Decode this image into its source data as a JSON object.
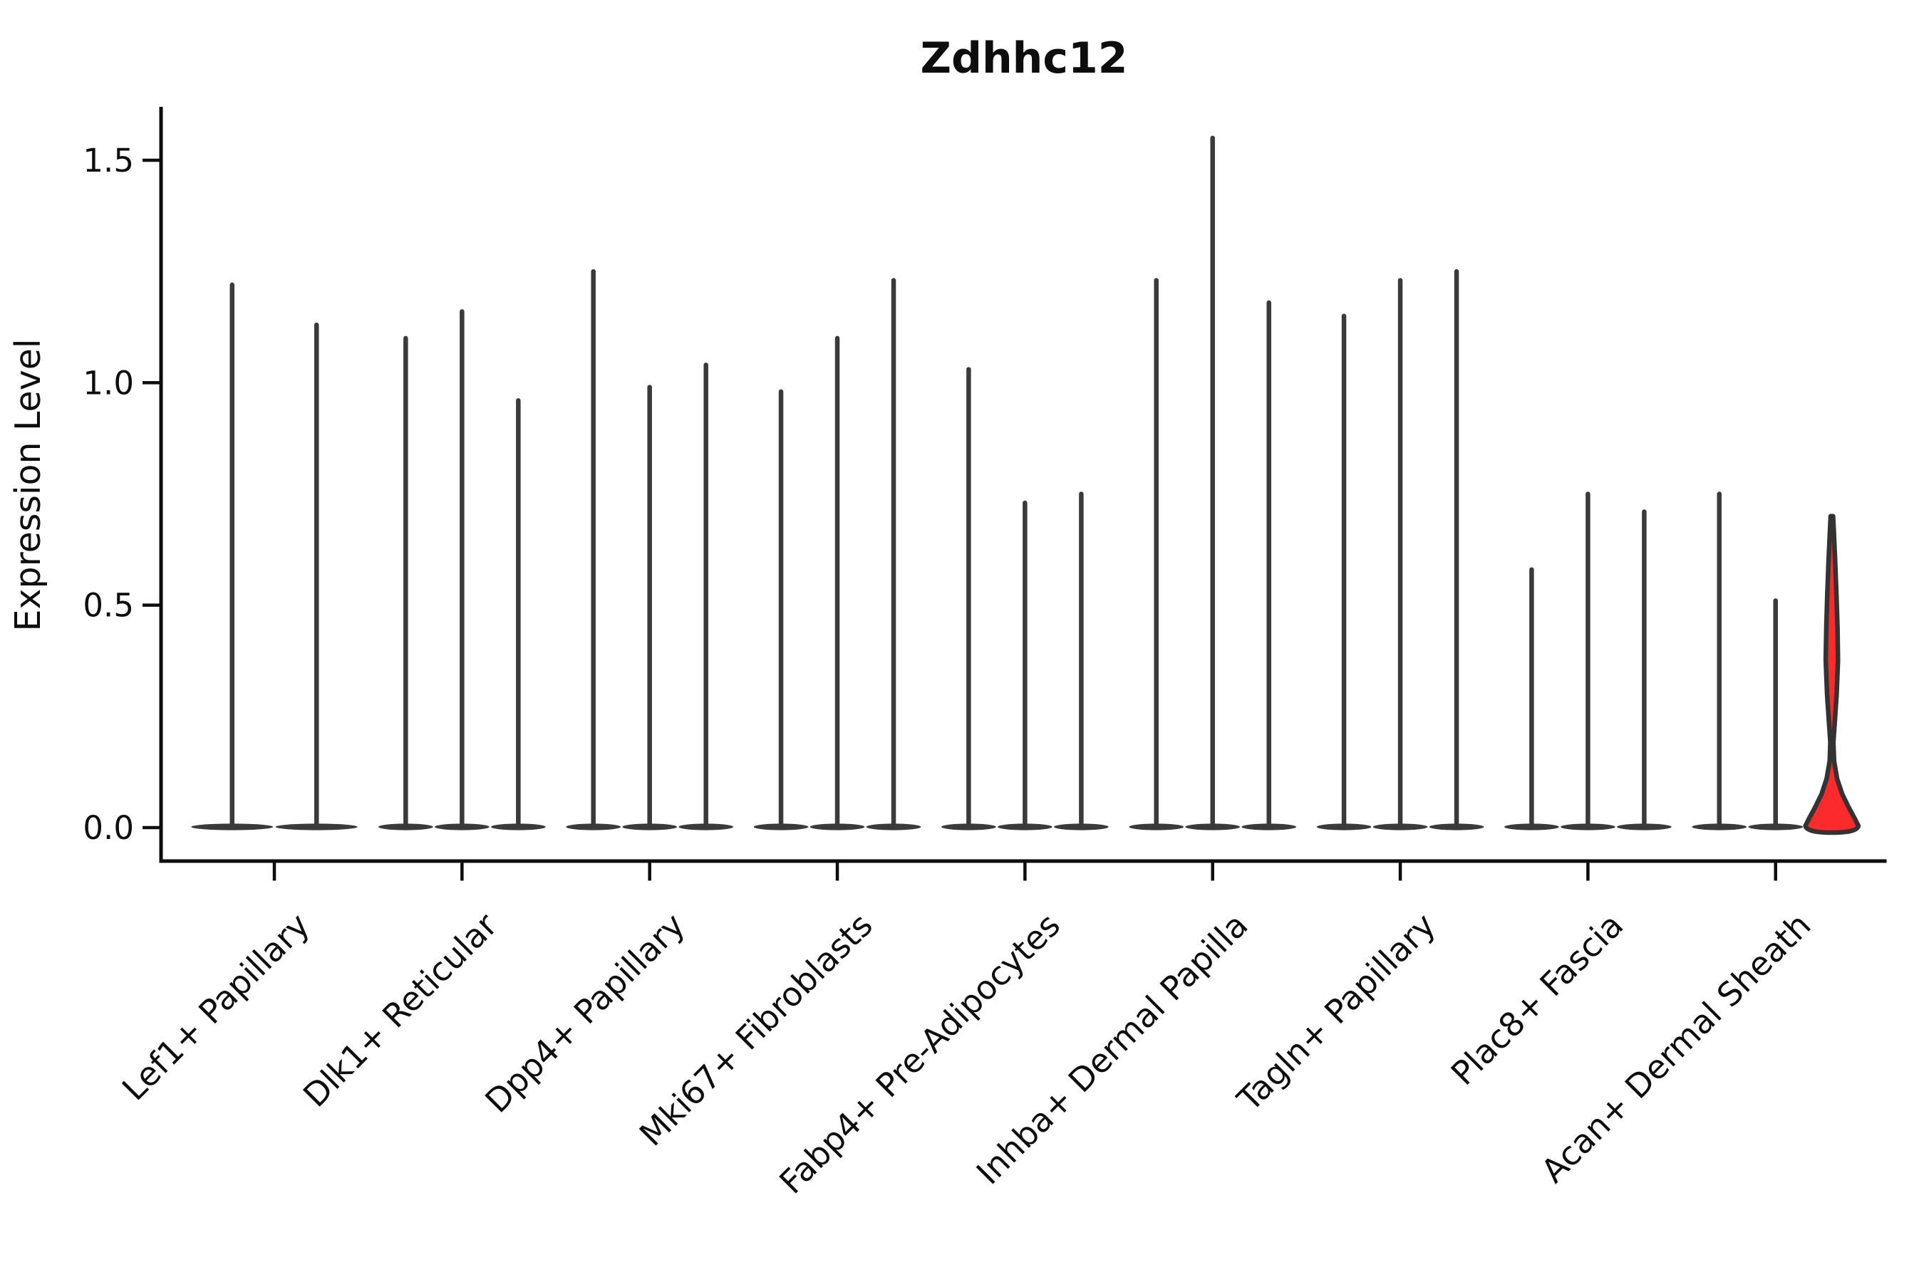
{
  "title": "Zdhhc12",
  "ylabel": "Expression Level",
  "colors": {
    "axis": "#0d0d0d",
    "violin_stroke": "#3a3a3a",
    "highlight_fill": "#fb2b2b",
    "highlight_stroke": "#333333",
    "background": "#ffffff"
  },
  "chart_data": {
    "type": "violin",
    "title": "Zdhhc12",
    "xlabel": "",
    "ylabel": "Expression Level",
    "ylim": [
      -0.05,
      1.62
    ],
    "yticks": [
      0.0,
      0.5,
      1.0,
      1.5
    ],
    "ytick_labels": [
      "0.0",
      "0.5",
      "1.0",
      "1.5"
    ],
    "legend": "none",
    "grid": false,
    "categories": [
      "Lef1+ Papillary",
      "Dlk1+ Reticular",
      "Dpp4+ Papillary",
      "Mki67+ Fibroblasts",
      "Fabp4+ Pre-Adipocytes",
      "Inhba+ Dermal Papilla",
      "Tagln+ Papillary",
      "Plac8+ Fascia",
      "Acan+ Dermal Sheath"
    ],
    "groups": [
      {
        "label": "Lef1+ Papillary",
        "violins": [
          {
            "max": 1.22,
            "min": 0
          },
          {
            "max": 1.13,
            "min": 0
          }
        ]
      },
      {
        "label": "Dlk1+ Reticular",
        "violins": [
          {
            "max": 1.1,
            "min": 0
          },
          {
            "max": 1.16,
            "min": 0
          },
          {
            "max": 0.96,
            "min": 0
          }
        ]
      },
      {
        "label": "Dpp4+ Papillary",
        "violins": [
          {
            "max": 1.25,
            "min": 0
          },
          {
            "max": 0.99,
            "min": 0
          },
          {
            "max": 1.04,
            "min": 0
          }
        ]
      },
      {
        "label": "Mki67+ Fibroblasts",
        "violins": [
          {
            "max": 0.98,
            "min": 0
          },
          {
            "max": 1.1,
            "min": 0
          },
          {
            "max": 1.23,
            "min": 0
          }
        ]
      },
      {
        "label": "Fabp4+ Pre-Adipocytes",
        "violins": [
          {
            "max": 1.03,
            "min": 0
          },
          {
            "max": 0.73,
            "min": 0
          },
          {
            "max": 0.75,
            "min": 0
          }
        ]
      },
      {
        "label": "Inhba+ Dermal Papilla",
        "violins": [
          {
            "max": 1.23,
            "min": 0
          },
          {
            "max": 1.55,
            "min": 0
          },
          {
            "max": 1.18,
            "min": 0
          }
        ]
      },
      {
        "label": "Tagln+ Papillary",
        "violins": [
          {
            "max": 1.15,
            "min": 0
          },
          {
            "max": 1.23,
            "min": 0
          },
          {
            "max": 1.25,
            "min": 0
          }
        ]
      },
      {
        "label": "Plac8+ Fascia",
        "violins": [
          {
            "max": 0.58,
            "min": 0
          },
          {
            "max": 0.75,
            "min": 0
          },
          {
            "max": 0.71,
            "min": 0
          }
        ]
      },
      {
        "label": "Acan+ Dermal Sheath",
        "violins": [
          {
            "max": 0.75,
            "min": 0
          },
          {
            "max": 0.51,
            "min": 0
          },
          {
            "max": 0.7,
            "min": 0,
            "highlight": true,
            "profile": [
              [
                0.7,
                0.045
              ],
              [
                0.66,
                0.075
              ],
              [
                0.6,
                0.12
              ],
              [
                0.52,
                0.17
              ],
              [
                0.45,
                0.205
              ],
              [
                0.376,
                0.225
              ],
              [
                0.3,
                0.175
              ],
              [
                0.24,
                0.11
              ],
              [
                0.192,
                0.055
              ],
              [
                0.15,
                0.08
              ],
              [
                0.11,
                0.19
              ],
              [
                0.075,
                0.38
              ],
              [
                0.045,
                0.62
              ],
              [
                0.02,
                0.84
              ],
              [
                0.004,
                0.97
              ]
            ]
          }
        ]
      }
    ]
  }
}
